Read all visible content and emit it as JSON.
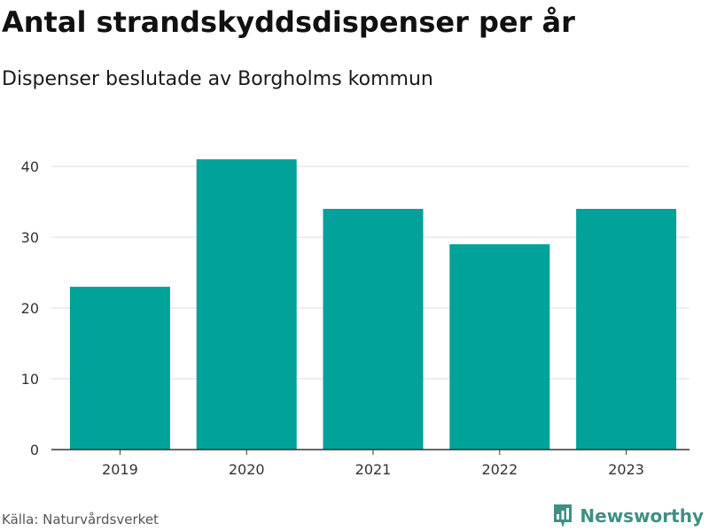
{
  "header": {
    "title": "Antal strandskyddsdispenser per år",
    "subtitle": "Dispenser beslutade av Borgholms kommun"
  },
  "footer": {
    "source": "Källa: Naturvårdsverket",
    "brand": "Newsworthy"
  },
  "colors": {
    "bar": "#00a29a",
    "grid": "#dddddd",
    "axis": "#333333",
    "brand": "#3f8f83"
  },
  "chart_data": {
    "type": "bar",
    "title": "Antal strandskyddsdispenser per år",
    "subtitle": "Dispenser beslutade av Borgholms kommun",
    "categories": [
      "2019",
      "2020",
      "2021",
      "2022",
      "2023"
    ],
    "values": [
      23,
      41,
      34,
      29,
      34
    ],
    "xlabel": "",
    "ylabel": "",
    "ylim": [
      0,
      40
    ],
    "yticks": [
      0,
      10,
      20,
      30,
      40
    ],
    "grid": true
  }
}
